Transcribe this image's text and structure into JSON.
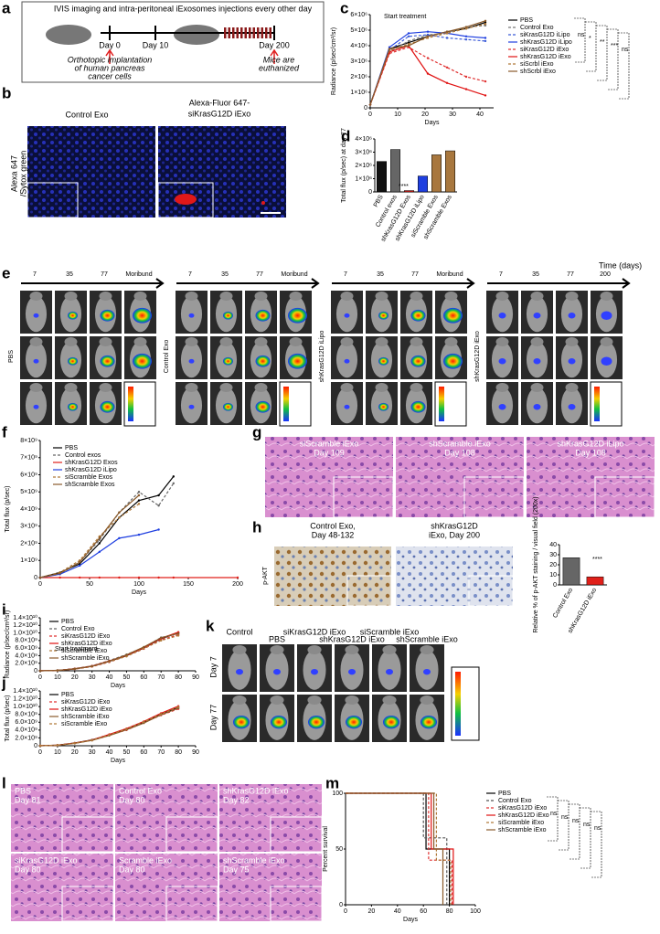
{
  "panels": {
    "a": {
      "letter": "a",
      "header": "IVIS imaging and intra-peritoneal iExosomes injections every other day",
      "day0": "Day 0",
      "day10": "Day 10",
      "day200": "Day 200",
      "left_note": [
        "Orthotopic implantation",
        "of human pancreas",
        "cancer cells"
      ],
      "right_note": [
        "Mice are",
        "euthanized"
      ]
    },
    "b": {
      "letter": "b",
      "col1": "Control Exo",
      "col2": [
        "Alexa-Fluor 647-",
        "siKrasG12D iExo"
      ],
      "row1": "Alexa 647",
      "row2": "/Sytox green"
    },
    "e": {
      "letter": "e",
      "axis": "Time (days)",
      "groups": [
        {
          "label": "PBS",
          "times": [
            "7",
            "35",
            "77",
            "Moribund"
          ]
        },
        {
          "label": "Control Exo",
          "times": [
            "7",
            "35",
            "77",
            "Moribund"
          ]
        },
        {
          "label": "shKrasG12D iLipo",
          "times": [
            "7",
            "35",
            "77",
            "Moribund"
          ]
        },
        {
          "label": "shKrasG12D iExo",
          "times": [
            "7",
            "35",
            "77",
            "200"
          ]
        }
      ]
    },
    "g": {
      "letter": "g",
      "captions": [
        [
          "siScramble iExo",
          "Day 109"
        ],
        [
          "shScramble iExo",
          "Day 108"
        ],
        [
          "shKrasG12D iLipo",
          "Day 108"
        ]
      ]
    },
    "h": {
      "letter": "h",
      "row": "p-AKT",
      "captions": [
        [
          "Control Exo,",
          "Day 48-132"
        ],
        [
          "shKrasG12D",
          "iExo, Day 200"
        ]
      ]
    },
    "k": {
      "letter": "k",
      "columns": [
        "Control",
        "PBS",
        "siKrasG12D iExo",
        "shKrasG12D iExo",
        "siScramble iExo",
        "shScramble iExo"
      ],
      "rows": [
        "Day 7",
        "Day 77"
      ]
    },
    "l": {
      "letter": "l",
      "captions": [
        [
          "PBS",
          "Day 81"
        ],
        [
          "Control Exo",
          "Day 80"
        ],
        [
          "shKrasG12D iExo",
          "Day 82"
        ],
        [
          "siKrasG12D iExo",
          "Day 80"
        ],
        [
          "Scramble iExo",
          "Day 80"
        ],
        [
          "shScramble iExo",
          "Day 75"
        ]
      ]
    }
  },
  "chart_data": [
    {
      "label": "c",
      "type": "line",
      "xlabel": "Days",
      "ylabel": "Radiance (p/sec/cm²/sr)",
      "annotation": "Start treatment",
      "x": [
        0,
        7,
        14,
        21,
        28,
        35,
        42
      ],
      "xlim": [
        0,
        45
      ],
      "xticks": [
        0,
        10,
        20,
        30,
        40
      ],
      "ylim": [
        0,
        6000000
      ],
      "yticks": [
        0,
        {
          "value": 1000000,
          "label": "1×10⁶"
        },
        {
          "value": 2000000,
          "label": "2×10⁶"
        },
        {
          "value": 3000000,
          "label": "3×10⁶"
        },
        {
          "value": 4000000,
          "label": "4×10⁶"
        },
        {
          "value": 5000000,
          "label": "5×10⁶"
        },
        {
          "value": 6000000,
          "label": "6×10⁶"
        }
      ],
      "stats": [
        "ns",
        "*",
        "**",
        "***",
        "ns"
      ],
      "series": [
        {
          "name": "PBS",
          "color": "#000000",
          "dashed": false,
          "values": [
            200000,
            3800000,
            4200000,
            4600000,
            4900000,
            5100000,
            5500000
          ]
        },
        {
          "name": "Control Exo",
          "color": "#777777",
          "dashed": true,
          "values": [
            200000,
            3600000,
            4300000,
            4700000,
            4800000,
            5200000,
            5300000
          ]
        },
        {
          "name": "siKrasG12D iLipo",
          "color": "#3a5ad8",
          "dashed": true,
          "values": [
            200000,
            3700000,
            4600000,
            4700000,
            4500000,
            4400000,
            4300000
          ]
        },
        {
          "name": "shKrasG12D iLipo",
          "color": "#1f3fe0",
          "dashed": false,
          "values": [
            200000,
            3900000,
            4800000,
            4900000,
            4800000,
            4600000,
            4500000
          ]
        },
        {
          "name": "siKrasG12D iExo",
          "color": "#e03030",
          "dashed": true,
          "values": [
            200000,
            3500000,
            3900000,
            3200000,
            2600000,
            2000000,
            1700000
          ]
        },
        {
          "name": "shKrasG12D iExo",
          "color": "#e01010",
          "dashed": false,
          "values": [
            200000,
            3600000,
            4000000,
            2200000,
            1600000,
            1200000,
            800000
          ]
        },
        {
          "name": "siScrbl iExo",
          "color": "#b07a3a",
          "dashed": true,
          "values": [
            200000,
            3700000,
            4100000,
            4500000,
            4800000,
            5100000,
            5400000
          ]
        },
        {
          "name": "shScrbl iExo",
          "color": "#8a5a2a",
          "dashed": false,
          "values": [
            200000,
            3800000,
            4000000,
            4600000,
            4900000,
            5200000,
            5600000
          ]
        }
      ]
    },
    {
      "label": "d",
      "type": "bar",
      "ylabel": "Total flux (p/sec) at day 77",
      "annotation": "****",
      "categories": [
        "PBS",
        "Control exos",
        "shKrasG12D Exos",
        "shKrasG12D iLipo",
        "siScramble Exos",
        "shScramble Exos"
      ],
      "values": [
        2300000,
        3200000,
        100000,
        1200000,
        2800000,
        3100000
      ],
      "colors": [
        "#111111",
        "#666666",
        "#e0201a",
        "#1f3fe0",
        "#a8773e",
        "#a8773e"
      ],
      "ylim": [
        0,
        4000000
      ],
      "yticks": [
        0,
        {
          "value": 1000000,
          "label": "1×10⁶"
        },
        {
          "value": 2000000,
          "label": "2×10⁶"
        },
        {
          "value": 3000000,
          "label": "3×10⁶"
        },
        {
          "value": 4000000,
          "label": "4×10⁶"
        }
      ]
    },
    {
      "label": "f",
      "type": "line",
      "xlabel": "Days",
      "ylabel": "Total flux (p/sec)",
      "x": [
        0,
        20,
        40,
        60,
        80,
        100,
        120,
        135,
        200
      ],
      "xlim": [
        0,
        200
      ],
      "xticks": [
        0,
        50,
        100,
        150,
        200
      ],
      "ylim": [
        0,
        8000000000
      ],
      "yticks": [
        0,
        {
          "value": 1000000000,
          "label": "1×10⁹"
        },
        {
          "value": 2000000000,
          "label": "2×10⁹"
        },
        {
          "value": 3000000000,
          "label": "3×10⁹"
        },
        {
          "value": 4000000000,
          "label": "4×10⁹"
        },
        {
          "value": 5000000000,
          "label": "5×10⁹"
        },
        {
          "value": 6000000000,
          "label": "6×10⁹"
        },
        {
          "value": 7000000000,
          "label": "7×10⁹"
        },
        {
          "value": 8000000000,
          "label": "8×10⁹"
        }
      ],
      "series": [
        {
          "name": "PBS",
          "color": "#000000",
          "dashed": false,
          "values": [
            0,
            300000000,
            800000000,
            2000000000,
            3500000000,
            4500000000,
            4800000000,
            5900000000,
            null
          ]
        },
        {
          "name": "Control exos",
          "color": "#666666",
          "dashed": true,
          "values": [
            0,
            200000000,
            900000000,
            2200000000,
            3800000000,
            5000000000,
            4200000000,
            5500000000,
            null
          ]
        },
        {
          "name": "shKrasG12D Exos",
          "color": "#e0201a",
          "dashed": false,
          "values": [
            0,
            0,
            0,
            0,
            0,
            0,
            0,
            0,
            0
          ]
        },
        {
          "name": "shKrasG12D iLipo",
          "color": "#1f3fe0",
          "dashed": false,
          "values": [
            0,
            200000000,
            700000000,
            1500000000,
            2300000000,
            2500000000,
            2800000000,
            null,
            null
          ]
        },
        {
          "name": "siScramble Exos",
          "color": "#b07a3a",
          "dashed": true,
          "values": [
            0,
            300000000,
            1000000000,
            2400000000,
            3500000000,
            4300000000,
            null,
            null,
            null
          ]
        },
        {
          "name": "shScramble Exos",
          "color": "#8a5a2a",
          "dashed": false,
          "values": [
            0,
            250000000,
            900000000,
            2300000000,
            3800000000,
            4800000000,
            null,
            null,
            null
          ]
        }
      ]
    },
    {
      "label": "h",
      "type": "bar",
      "ylabel": "Relative % of p-AKT staining / visual field (200x)",
      "annotation": "****",
      "categories": [
        "Control Exo",
        "shKrasG12D iExo"
      ],
      "values": [
        27,
        8
      ],
      "colors": [
        "#666666",
        "#e0201a"
      ],
      "ylim": [
        0,
        40
      ],
      "yticks": [
        0,
        10,
        20,
        30,
        40
      ]
    },
    {
      "label": "i",
      "type": "line",
      "xlabel": "Days",
      "ylabel": "Radiance (p/sec/cm²/sr)",
      "annotation": "Start treatment",
      "x": [
        0,
        10,
        20,
        30,
        40,
        50,
        60,
        70,
        80
      ],
      "xlim": [
        0,
        90
      ],
      "xticks": [
        0,
        10,
        20,
        30,
        40,
        50,
        60,
        70,
        80,
        90
      ],
      "ylim": [
        0,
        14000000000
      ],
      "yticks": [
        0,
        {
          "value": 2000000000,
          "label": "2.0×10⁹"
        },
        {
          "value": 4000000000,
          "label": "4.0×10⁹"
        },
        {
          "value": 6000000000,
          "label": "6.0×10⁹"
        },
        {
          "value": 8000000000,
          "label": "8.0×10⁹"
        },
        {
          "value": 10000000000,
          "label": "1.0×10¹⁰"
        },
        {
          "value": 12000000000,
          "label": "1.2×10¹⁰"
        },
        {
          "value": 14000000000,
          "label": "1.4×10¹⁰"
        }
      ],
      "series": [
        {
          "name": "PBS",
          "color": "#000000",
          "dashed": false,
          "values": [
            0,
            100000000,
            500000000,
            1200000000,
            2500000000,
            4000000000,
            6000000000,
            8500000000,
            10000000000
          ]
        },
        {
          "name": "Control Exo",
          "color": "#666666",
          "dashed": true,
          "values": [
            0,
            120000000,
            600000000,
            1300000000,
            2700000000,
            4300000000,
            6200000000,
            8800000000,
            9800000000
          ]
        },
        {
          "name": "siKrasG12D iExo",
          "color": "#e03030",
          "dashed": true,
          "values": [
            0,
            90000000,
            450000000,
            1100000000,
            2300000000,
            3900000000,
            5800000000,
            8200000000,
            9500000000
          ]
        },
        {
          "name": "shKrasG12D iExo",
          "color": "#e01010",
          "dashed": false,
          "values": [
            0,
            110000000,
            550000000,
            1250000000,
            2600000000,
            4100000000,
            6100000000,
            8600000000,
            10200000000
          ]
        },
        {
          "name": "siScramble iExo",
          "color": "#b07a3a",
          "dashed": true,
          "values": [
            0,
            100000000,
            480000000,
            1150000000,
            2400000000,
            3800000000,
            5900000000,
            8000000000,
            9300000000
          ]
        },
        {
          "name": "shScramble iExo",
          "color": "#8a5a2a",
          "dashed": false,
          "values": [
            0,
            95000000,
            520000000,
            1200000000,
            2550000000,
            4200000000,
            6300000000,
            8700000000,
            9900000000
          ]
        }
      ]
    },
    {
      "label": "j",
      "type": "line",
      "xlabel": "Days",
      "ylabel": "Total flux (p/sec)",
      "x": [
        0,
        10,
        20,
        30,
        40,
        50,
        60,
        70,
        80
      ],
      "xlim": [
        0,
        90
      ],
      "xticks": [
        0,
        10,
        20,
        30,
        40,
        50,
        60,
        70,
        80,
        90
      ],
      "ylim": [
        0,
        14000000000
      ],
      "yticks": [
        0,
        {
          "value": 2000000000,
          "label": "2.0×10⁹"
        },
        {
          "value": 4000000000,
          "label": "4.0×10⁹"
        },
        {
          "value": 6000000000,
          "label": "6.0×10⁹"
        },
        {
          "value": 8000000000,
          "label": "8.0×10⁹"
        },
        {
          "value": 10000000000,
          "label": "1.0×10¹⁰"
        },
        {
          "value": 12000000000,
          "label": "1.2×10¹⁰"
        },
        {
          "value": 14000000000,
          "label": "1.4×10¹⁰"
        }
      ],
      "series": [
        {
          "name": "PBS",
          "color": "#000000",
          "dashed": false,
          "values": [
            0,
            150000000,
            700000000,
            1500000000,
            2800000000,
            4200000000,
            6000000000,
            8000000000,
            9800000000
          ]
        },
        {
          "name": "siKrasG12D iExo",
          "color": "#e03030",
          "dashed": true,
          "values": [
            0,
            130000000,
            650000000,
            1400000000,
            2700000000,
            4000000000,
            5900000000,
            7800000000,
            9400000000
          ]
        },
        {
          "name": "shKrasG12D iExo",
          "color": "#e01010",
          "dashed": false,
          "values": [
            0,
            140000000,
            680000000,
            1450000000,
            2900000000,
            4400000000,
            6200000000,
            8300000000,
            10100000000
          ]
        },
        {
          "name": "shScramble iExo",
          "color": "#8a5a2a",
          "dashed": false,
          "values": [
            0,
            120000000,
            600000000,
            1350000000,
            2600000000,
            4100000000,
            5800000000,
            7900000000,
            9600000000
          ]
        },
        {
          "name": "siScramble iExo",
          "color": "#b07a3a",
          "dashed": true,
          "values": [
            0,
            135000000,
            660000000,
            1420000000,
            2750000000,
            4300000000,
            6100000000,
            8100000000,
            9900000000
          ]
        }
      ]
    },
    {
      "label": "m",
      "type": "survival",
      "xlabel": "Days",
      "ylabel": "Percent survival",
      "xlim": [
        0,
        100
      ],
      "xticks": [
        0,
        20,
        40,
        60,
        80,
        100
      ],
      "ylim": [
        0,
        100
      ],
      "yticks": [
        0,
        50,
        100
      ],
      "stats": [
        "ns",
        "ns",
        "ns",
        "ns",
        "ns"
      ],
      "series": [
        {
          "name": "PBS",
          "color": "#000000",
          "dashed": false,
          "x": [
            0,
            62,
            80
          ],
          "values": [
            100,
            50,
            0
          ]
        },
        {
          "name": "Control Exo",
          "color": "#555555",
          "dashed": true,
          "x": [
            0,
            60,
            78
          ],
          "values": [
            100,
            60,
            0
          ]
        },
        {
          "name": "siKrasG12D iExo",
          "color": "#e03030",
          "dashed": true,
          "x": [
            0,
            64,
            82
          ],
          "values": [
            100,
            40,
            0
          ]
        },
        {
          "name": "shKrasG12D iExo",
          "color": "#e01010",
          "dashed": false,
          "x": [
            0,
            66,
            83
          ],
          "values": [
            100,
            50,
            0
          ]
        },
        {
          "name": "siScramble iExo",
          "color": "#b07a3a",
          "dashed": true,
          "x": [
            0,
            70,
            81
          ],
          "values": [
            100,
            40,
            0
          ]
        },
        {
          "name": "shScramble iExo",
          "color": "#8a5a2a",
          "dashed": false,
          "x": [
            0,
            68,
            75
          ],
          "values": [
            100,
            50,
            0
          ]
        }
      ]
    }
  ]
}
